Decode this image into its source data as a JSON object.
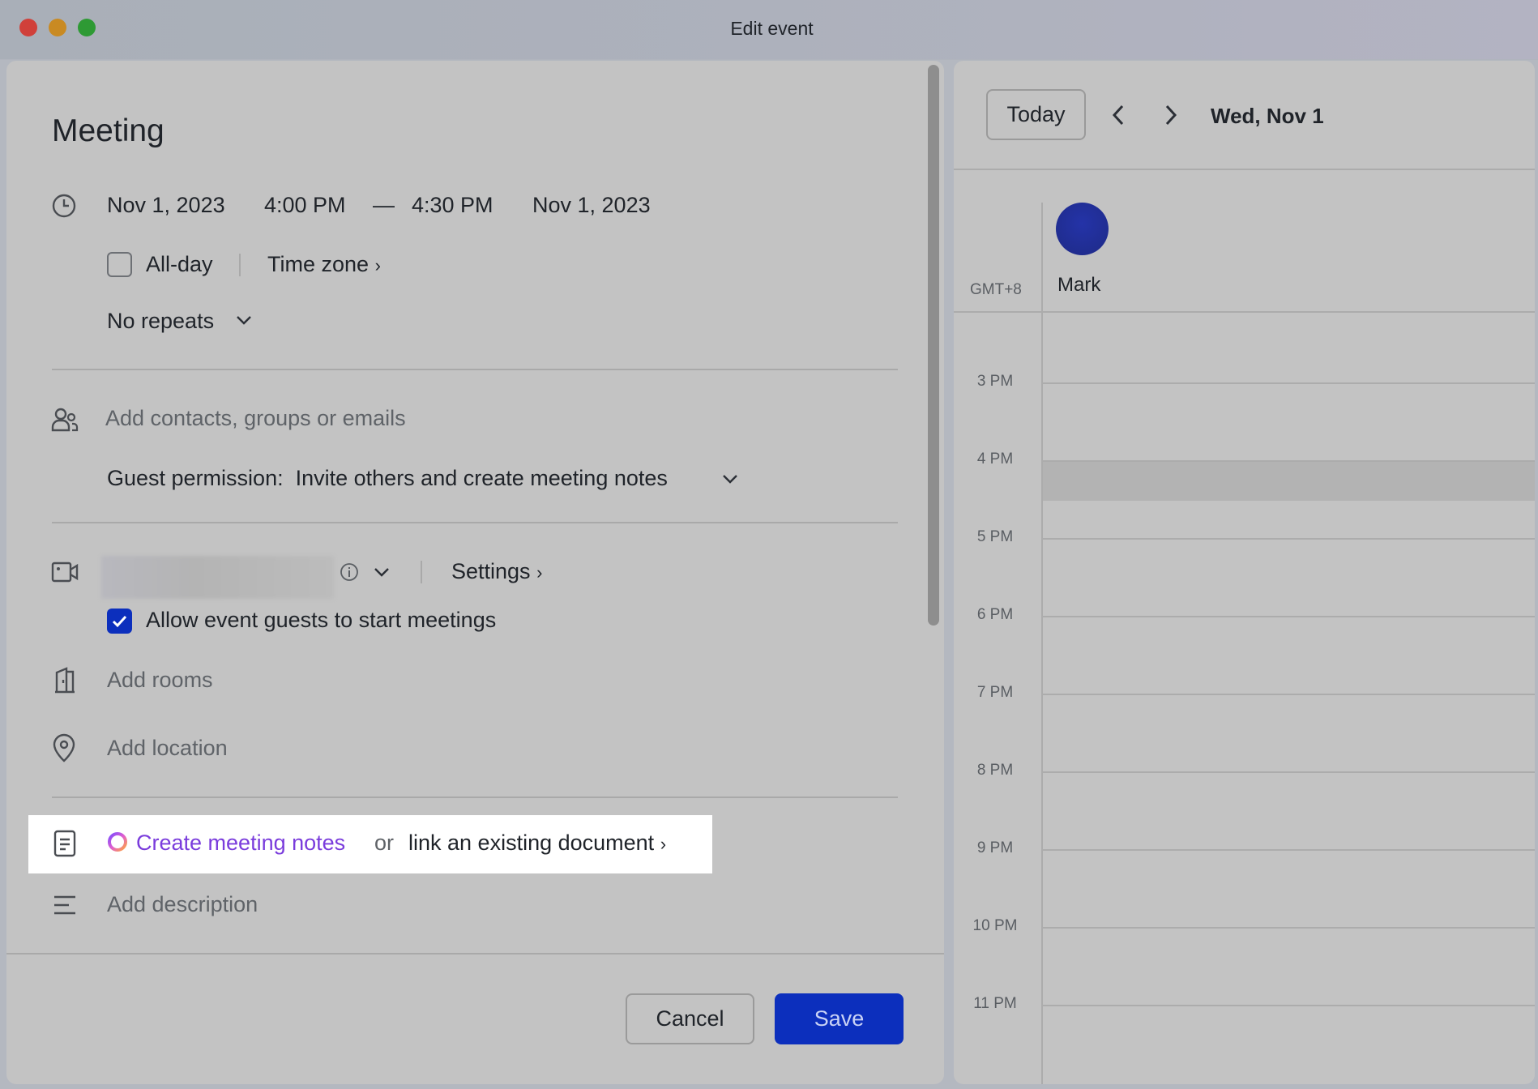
{
  "window": {
    "title": "Edit event",
    "controls": [
      "close",
      "minimize",
      "maximize"
    ]
  },
  "event": {
    "title": "Meeting",
    "start_date": "Nov 1, 2023",
    "start_time": "4:00 PM",
    "dash": "—",
    "end_time": "4:30 PM",
    "end_date": "Nov 1, 2023",
    "all_day_label": "All-day",
    "all_day_checked": false,
    "time_zone_label": "Time zone",
    "repeat_label": "No repeats",
    "contacts_placeholder": "Add contacts, groups or emails",
    "guest_permission_label": "Guest permission:",
    "guest_permission_value": "Invite others and create meeting notes",
    "settings_label": "Settings",
    "allow_guests_label": "Allow event guests to start meetings",
    "allow_guests_checked": true,
    "rooms_placeholder": "Add rooms",
    "location_placeholder": "Add location",
    "create_notes_label": "Create meeting notes",
    "or_label": "or",
    "link_doc_label": "link an existing document",
    "description_placeholder": "Add description"
  },
  "footer": {
    "cancel_label": "Cancel",
    "save_label": "Save"
  },
  "calendar": {
    "today_label": "Today",
    "date_label": "Wed, Nov 1",
    "timezone": "GMT+8",
    "person": {
      "name": "Mark",
      "avatar_color": "#23309a"
    },
    "hours": [
      "3 PM",
      "4 PM",
      "5 PM",
      "6 PM",
      "7 PM",
      "8 PM",
      "9 PM",
      "10 PM",
      "11 PM"
    ]
  },
  "colors": {
    "accent": "#0c2fbd",
    "notes_link": "#7a3cdc"
  }
}
